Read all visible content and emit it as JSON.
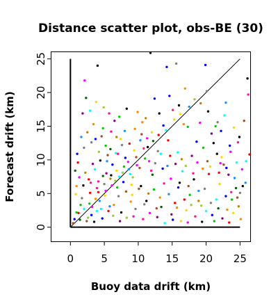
{
  "chart_data": {
    "type": "scatter",
    "title": "Distance scatter plot, obs-BE (30)",
    "xlabel": "Buoy data drift (km)",
    "ylabel": "Forecast drift (km)",
    "xlim": [
      -2.8,
      26.5
    ],
    "ylim": [
      -2.1,
      26.0
    ],
    "xticks": [
      "0",
      "5",
      "10",
      "15",
      "20",
      "25"
    ],
    "yticks": [
      "0",
      "5",
      "10",
      "15",
      "20",
      "25"
    ],
    "grid": false,
    "reference_lines": [
      "1:1 diagonal",
      "y-axis segment x=0, y 0–25",
      "x-axis segment y=0, x 0–25"
    ],
    "palette": [
      "#ff0000",
      "#00cd00",
      "#0000ff",
      "#00ffff",
      "#ff00ff",
      "#ffd700",
      "#000000",
      "#a0522d",
      "#ff8c00",
      "#ff1493",
      "#1e90ff",
      "#9acd32",
      "#808080",
      "#b8860b",
      "#8b008b",
      "#006400"
    ],
    "series": [
      {
        "points": [
          [
            1.2,
            2.1,
            0
          ],
          [
            2.8,
            3.5,
            1
          ],
          [
            3.1,
            1.8,
            2
          ],
          [
            4.5,
            2.7,
            3
          ],
          [
            5.2,
            5.4,
            4
          ],
          [
            0.8,
            4.9,
            5
          ],
          [
            1.9,
            6.2,
            6
          ],
          [
            2.4,
            0.9,
            7
          ],
          [
            3.7,
            4.2,
            8
          ],
          [
            4.1,
            6.8,
            9
          ],
          [
            5.8,
            3.1,
            10
          ],
          [
            6.3,
            1.7,
            11
          ],
          [
            7.1,
            4.6,
            12
          ],
          [
            2.2,
            8.1,
            13
          ],
          [
            3.3,
            9.4,
            14
          ],
          [
            4.8,
            7.6,
            15
          ],
          [
            1.5,
            3.3,
            1
          ],
          [
            0.6,
            1.2,
            2
          ],
          [
            2.9,
            5.1,
            0
          ],
          [
            3.9,
            2.4,
            3
          ],
          [
            6.1,
            6.2,
            4
          ],
          [
            6.8,
            8.4,
            5
          ],
          [
            7.5,
            2.2,
            6
          ],
          [
            8.2,
            5.3,
            7
          ],
          [
            8.9,
            3.8,
            8
          ],
          [
            9.3,
            1.6,
            9
          ],
          [
            5.4,
            9.8,
            10
          ],
          [
            4.2,
            11.2,
            11
          ],
          [
            3.1,
            12.6,
            12
          ],
          [
            2.5,
            14.1,
            13
          ],
          [
            1.8,
            16.9,
            14
          ],
          [
            2.3,
            19.2,
            15
          ],
          [
            2.1,
            21.8,
            4
          ],
          [
            4.0,
            24.0,
            6
          ],
          [
            3.4,
            15.3,
            8
          ],
          [
            4.6,
            13.5,
            7
          ],
          [
            5.2,
            12.1,
            1
          ],
          [
            6.0,
            14.2,
            9
          ],
          [
            6.7,
            11.0,
            3
          ],
          [
            7.4,
            13.1,
            5
          ],
          [
            8.1,
            10.3,
            2
          ],
          [
            8.7,
            12.4,
            0
          ],
          [
            9.2,
            7.4,
            11
          ],
          [
            9.8,
            9.2,
            4
          ],
          [
            10.4,
            6.1,
            6
          ],
          [
            10.9,
            3.4,
            12
          ],
          [
            11.5,
            5.0,
            13
          ],
          [
            12.1,
            7.8,
            15
          ],
          [
            12.7,
            2.8,
            7
          ],
          [
            13.2,
            4.4,
            8
          ],
          [
            13.8,
            6.5,
            9
          ],
          [
            14.3,
            9.1,
            10
          ],
          [
            14.9,
            1.9,
            14
          ],
          [
            15.4,
            3.6,
            0
          ],
          [
            15.9,
            5.9,
            2
          ],
          [
            16.5,
            8.3,
            3
          ],
          [
            17.1,
            2.5,
            5
          ],
          [
            17.6,
            4.8,
            1
          ],
          [
            18.2,
            7.1,
            6
          ],
          [
            18.7,
            9.6,
            4
          ],
          [
            19.3,
            3.2,
            11
          ],
          [
            19.8,
            5.7,
            12
          ],
          [
            20.4,
            7.9,
            0
          ],
          [
            20.9,
            1.8,
            2
          ],
          [
            21.5,
            4.1,
            3
          ],
          [
            22.0,
            6.4,
            5
          ],
          [
            22.6,
            9.3,
            7
          ],
          [
            23.1,
            2.6,
            8
          ],
          [
            23.7,
            5.2,
            9
          ],
          [
            24.2,
            7.3,
            10
          ],
          [
            24.8,
            3.1,
            13
          ],
          [
            25.4,
            6.1,
            6
          ],
          [
            25.9,
            9.8,
            3
          ],
          [
            26.4,
            10.8,
            0
          ],
          [
            26.1,
            22.1,
            6
          ],
          [
            11.8,
            25.9,
            6
          ],
          [
            14.2,
            23.8,
            2
          ],
          [
            15.6,
            24.3,
            12
          ],
          [
            19.9,
            24.1,
            2
          ],
          [
            14.6,
            19.5,
            2
          ],
          [
            12.4,
            19.1,
            2
          ],
          [
            16.9,
            20.6,
            8
          ],
          [
            20.3,
            17.2,
            6
          ],
          [
            21.7,
            15.6,
            12
          ],
          [
            22.9,
            18.5,
            10
          ],
          [
            17.3,
            14.9,
            1
          ],
          [
            18.6,
            12.7,
            2
          ],
          [
            19.1,
            15.5,
            4
          ],
          [
            16.2,
            16.8,
            5
          ],
          [
            13.1,
            16.9,
            6
          ],
          [
            15.1,
            17.4,
            9
          ],
          [
            10.6,
            15.6,
            8
          ],
          [
            11.3,
            13.2,
            4
          ],
          [
            12.9,
            11.3,
            12
          ],
          [
            14.4,
            12.9,
            0
          ],
          [
            15.8,
            11.1,
            3
          ],
          [
            17.9,
            10.6,
            14
          ],
          [
            19.6,
            11.8,
            1
          ],
          [
            21.1,
            12.5,
            6
          ],
          [
            22.3,
            10.4,
            5
          ],
          [
            23.5,
            12.1,
            2
          ],
          [
            24.7,
            12.6,
            9
          ],
          [
            25.3,
            8.6,
            4
          ],
          [
            10.2,
            8.8,
            7
          ],
          [
            11.0,
            10.2,
            1
          ],
          [
            11.9,
            8.4,
            9
          ],
          [
            12.5,
            9.5,
            12
          ],
          [
            13.6,
            8.7,
            2
          ],
          [
            14.8,
            7.2,
            4
          ],
          [
            16.1,
            6.6,
            6
          ],
          [
            17.4,
            6.1,
            7
          ],
          [
            18.9,
            5.4,
            10
          ],
          [
            20.6,
            9.0,
            5
          ],
          [
            21.9,
            8.1,
            0
          ],
          [
            23.3,
            7.8,
            14
          ],
          [
            24.5,
            9.6,
            3
          ],
          [
            0.4,
            0.6,
            7
          ],
          [
            0.9,
            2.2,
            1
          ],
          [
            1.4,
            1.1,
            15
          ],
          [
            1.7,
            4.3,
            12
          ],
          [
            2.0,
            2.7,
            3
          ],
          [
            2.6,
            1.4,
            11
          ],
          [
            3.2,
            3.0,
            4
          ],
          [
            3.5,
            0.8,
            6
          ],
          [
            3.9,
            5.8,
            9
          ],
          [
            4.3,
            3.9,
            10
          ],
          [
            4.7,
            1.3,
            2
          ],
          [
            5.1,
            4.7,
            5
          ],
          [
            5.6,
            2.4,
            0
          ],
          [
            5.9,
            7.2,
            13
          ],
          [
            6.4,
            3.3,
            8
          ],
          [
            6.9,
            5.9,
            1
          ],
          [
            7.3,
            0.9,
            14
          ],
          [
            7.8,
            6.7,
            2
          ],
          [
            8.3,
            1.4,
            11
          ],
          [
            8.8,
            7.9,
            3
          ],
          [
            9.1,
            4.8,
            5
          ],
          [
            9.6,
            2.7,
            12
          ],
          [
            10.1,
            5.7,
            7
          ],
          [
            10.7,
            1.2,
            9
          ],
          [
            11.2,
            3.9,
            6
          ],
          [
            11.7,
            2.1,
            4
          ],
          [
            12.3,
            5.6,
            1
          ],
          [
            12.8,
            1.5,
            14
          ],
          [
            13.4,
            3.0,
            15
          ],
          [
            13.9,
            0.6,
            3
          ],
          [
            14.5,
            4.9,
            10
          ],
          [
            15.1,
            1.1,
            2
          ],
          [
            15.7,
            2.9,
            8
          ],
          [
            16.3,
            0.9,
            5
          ],
          [
            16.8,
            4.1,
            0
          ],
          [
            17.3,
            0.7,
            4
          ],
          [
            17.8,
            3.3,
            11
          ],
          [
            18.4,
            1.6,
            9
          ],
          [
            18.9,
            3.9,
            13
          ],
          [
            19.4,
            0.8,
            6
          ],
          [
            20.0,
            2.4,
            3
          ],
          [
            20.7,
            3.6,
            12
          ],
          [
            21.2,
            0.9,
            1
          ],
          [
            21.8,
            2.8,
            15
          ],
          [
            22.4,
            1.3,
            14
          ],
          [
            22.9,
            4.6,
            2
          ],
          [
            23.4,
            0.7,
            0
          ],
          [
            24.0,
            2.1,
            5
          ],
          [
            24.6,
            4.4,
            7
          ],
          [
            25.1,
            1.2,
            8
          ],
          [
            2.7,
            7.1,
            0
          ],
          [
            3.6,
            8.6,
            3
          ],
          [
            4.4,
            9.9,
            6
          ],
          [
            5.5,
            10.7,
            7
          ],
          [
            6.2,
            9.3,
            2
          ],
          [
            7.0,
            10.9,
            9
          ],
          [
            7.7,
            8.1,
            11
          ],
          [
            8.5,
            9.7,
            4
          ],
          [
            9.4,
            11.4,
            5
          ],
          [
            10.3,
            12.9,
            10
          ],
          [
            11.1,
            16.2,
            13
          ],
          [
            9.9,
            17.1,
            8
          ],
          [
            8.3,
            17.6,
            6
          ],
          [
            7.2,
            16.4,
            1
          ],
          [
            6.5,
            15.8,
            14
          ],
          [
            5.7,
            16.9,
            9
          ],
          [
            4.9,
            17.8,
            11
          ],
          [
            3.8,
            18.6,
            5
          ],
          [
            2.9,
            17.3,
            3
          ],
          [
            1.6,
            13.4,
            10
          ],
          [
            2.0,
            11.8,
            12
          ],
          [
            1.1,
            9.6,
            0
          ],
          [
            1.3,
            7.4,
            4
          ],
          [
            0.9,
            6.1,
            8
          ],
          [
            0.7,
            8.4,
            15
          ],
          [
            1.0,
            10.9,
            2
          ],
          [
            3.0,
            6.6,
            9
          ],
          [
            4.1,
            5.2,
            0
          ],
          [
            5.0,
            6.4,
            12
          ],
          [
            5.3,
            8.0,
            14
          ],
          [
            6.0,
            7.7,
            6
          ],
          [
            6.6,
            6.9,
            11
          ],
          [
            7.2,
            7.5,
            3
          ],
          [
            7.9,
            9.0,
            1
          ],
          [
            8.6,
            8.6,
            10
          ],
          [
            9.0,
            6.3,
            5
          ],
          [
            9.7,
            10.4,
            7
          ],
          [
            10.8,
            11.7,
            9
          ],
          [
            11.6,
            9.8,
            4
          ],
          [
            12.2,
            12.8,
            15
          ],
          [
            13.0,
            13.7,
            0
          ],
          [
            13.7,
            15.1,
            2
          ],
          [
            14.1,
            14.4,
            3
          ],
          [
            15.3,
            16.0,
            5
          ],
          [
            16.0,
            18.1,
            6
          ],
          [
            16.7,
            15.3,
            8
          ],
          [
            17.5,
            17.9,
            10
          ],
          [
            18.3,
            19.0,
            11
          ],
          [
            19.2,
            18.4,
            13
          ],
          [
            20.1,
            20.2,
            12
          ],
          [
            20.8,
            13.9,
            14
          ],
          [
            21.4,
            15.0,
            1
          ],
          [
            22.2,
            14.3,
            2
          ],
          [
            22.7,
            16.6,
            3
          ],
          [
            23.6,
            11.2,
            4
          ],
          [
            24.1,
            14.8,
            5
          ],
          [
            24.9,
            13.4,
            6
          ],
          [
            25.6,
            15.8,
            7
          ],
          [
            26.2,
            19.7,
            9
          ],
          [
            25.8,
            6.6,
            10
          ],
          [
            25.0,
            5.1,
            12
          ],
          [
            24.4,
            5.8,
            15
          ],
          [
            23.8,
            4.1,
            1
          ],
          [
            23.0,
            8.8,
            2
          ],
          [
            22.1,
            9.5,
            4
          ],
          [
            21.6,
            10.9,
            6
          ],
          [
            20.2,
            9.8,
            7
          ],
          [
            19.5,
            8.7,
            8
          ],
          [
            18.1,
            8.0,
            9
          ],
          [
            17.0,
            9.1,
            11
          ],
          [
            16.4,
            10.1,
            13
          ],
          [
            15.5,
            9.4,
            14
          ],
          [
            14.7,
            10.6,
            0
          ],
          [
            13.3,
            10.9,
            3
          ],
          [
            12.0,
            14.1,
            5
          ],
          [
            11.4,
            11.9,
            6
          ],
          [
            10.5,
            13.8,
            7
          ],
          [
            9.5,
            14.6,
            8
          ],
          [
            8.0,
            14.3,
            10
          ],
          [
            7.6,
            12.2,
            12
          ],
          [
            6.8,
            13.4,
            13
          ],
          [
            5.9,
            11.6,
            15
          ],
          [
            4.8,
            14.7,
            1
          ],
          [
            3.7,
            13.1,
            2
          ]
        ]
      }
    ]
  }
}
